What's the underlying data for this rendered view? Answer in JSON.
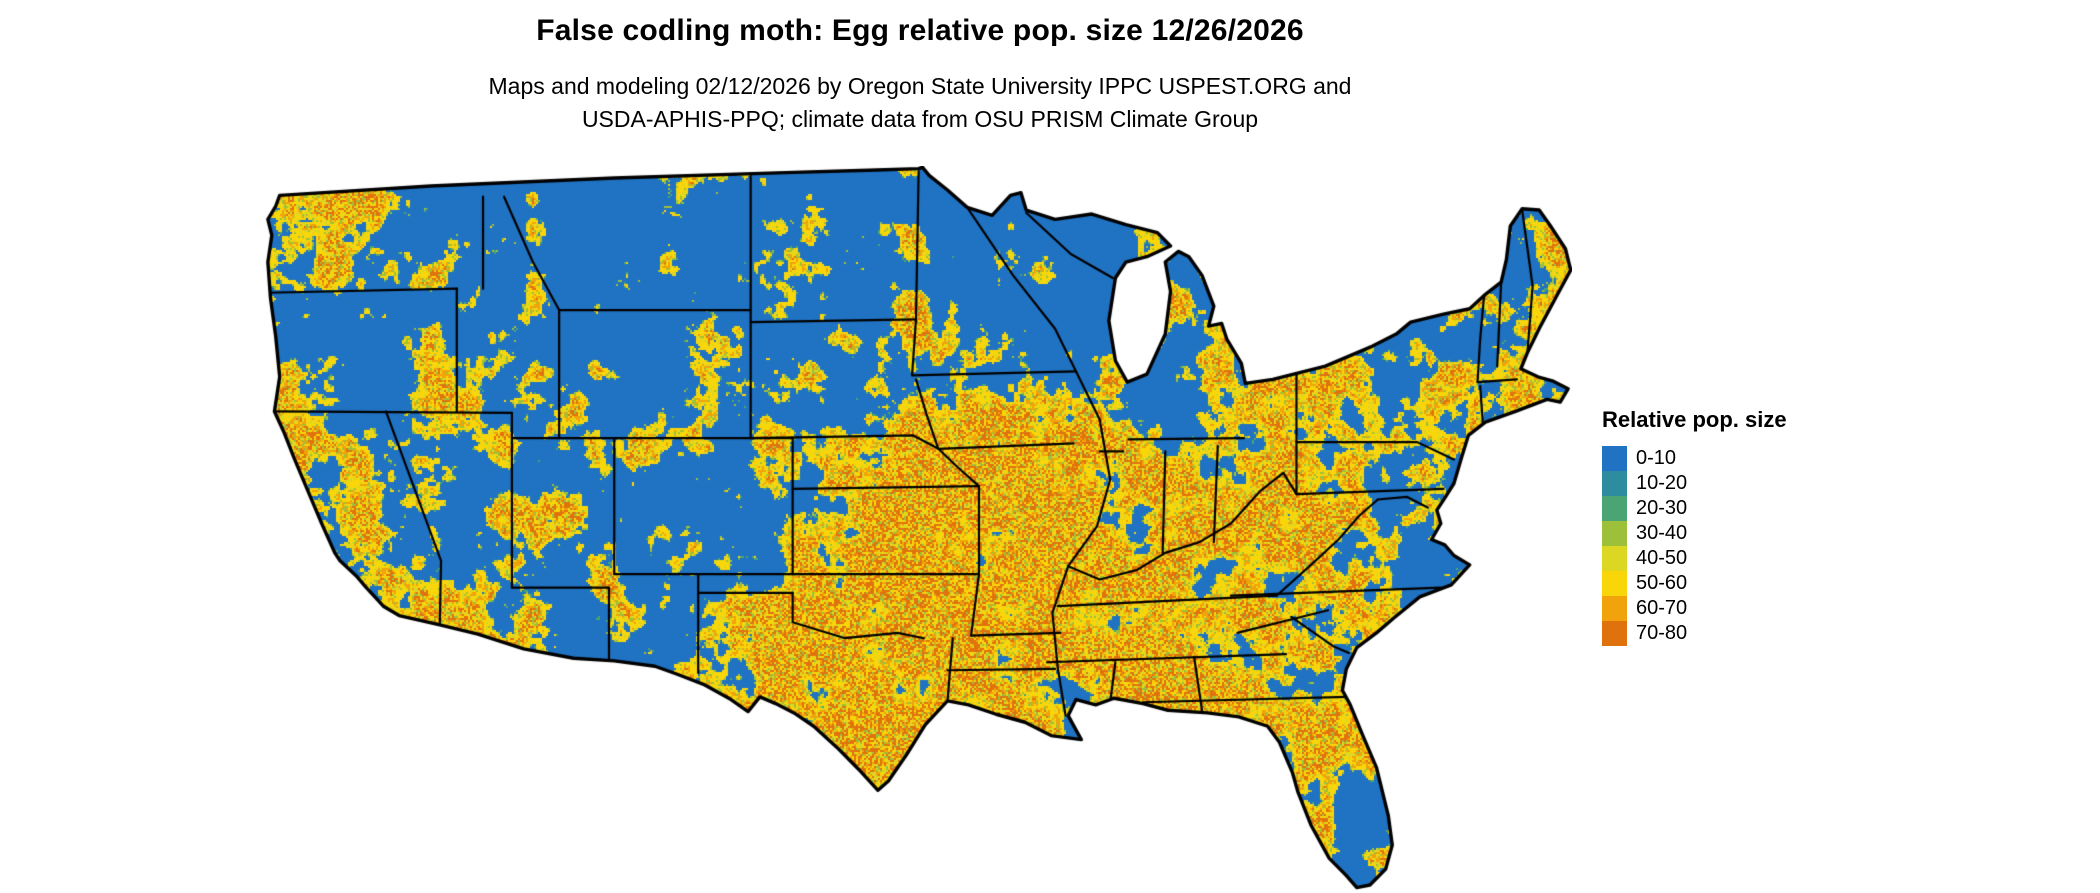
{
  "page": {
    "background_color": "#ffffff"
  },
  "header": {
    "title": "False codling moth: Egg relative pop. size 12/26/2026",
    "subtitle_line1": "Maps and modeling 02/12/2026 by Oregon State University IPPC USPEST.ORG and",
    "subtitle_line2": "USDA-APHIS-PPQ; climate data from OSU PRISM Climate Group"
  },
  "map": {
    "description": "Continental United States raster map of False codling moth egg relative population size; mostly 0-10 (blue) with speckled 40-60 (yellow) bands and scattered higher values",
    "base_color": "#2072C2",
    "border_color": "#000000"
  },
  "legend": {
    "title": "Relative pop. size",
    "items": [
      {
        "label": "0-10",
        "color": "#2072C2"
      },
      {
        "label": "10-20",
        "color": "#2E8CA0"
      },
      {
        "label": "20-30",
        "color": "#4BA473"
      },
      {
        "label": "30-40",
        "color": "#9DC03A"
      },
      {
        "label": "40-50",
        "color": "#DBD723"
      },
      {
        "label": "50-60",
        "color": "#F9D60A"
      },
      {
        "label": "60-70",
        "color": "#F0A30A"
      },
      {
        "label": "70-80",
        "color": "#E0720E"
      }
    ]
  }
}
